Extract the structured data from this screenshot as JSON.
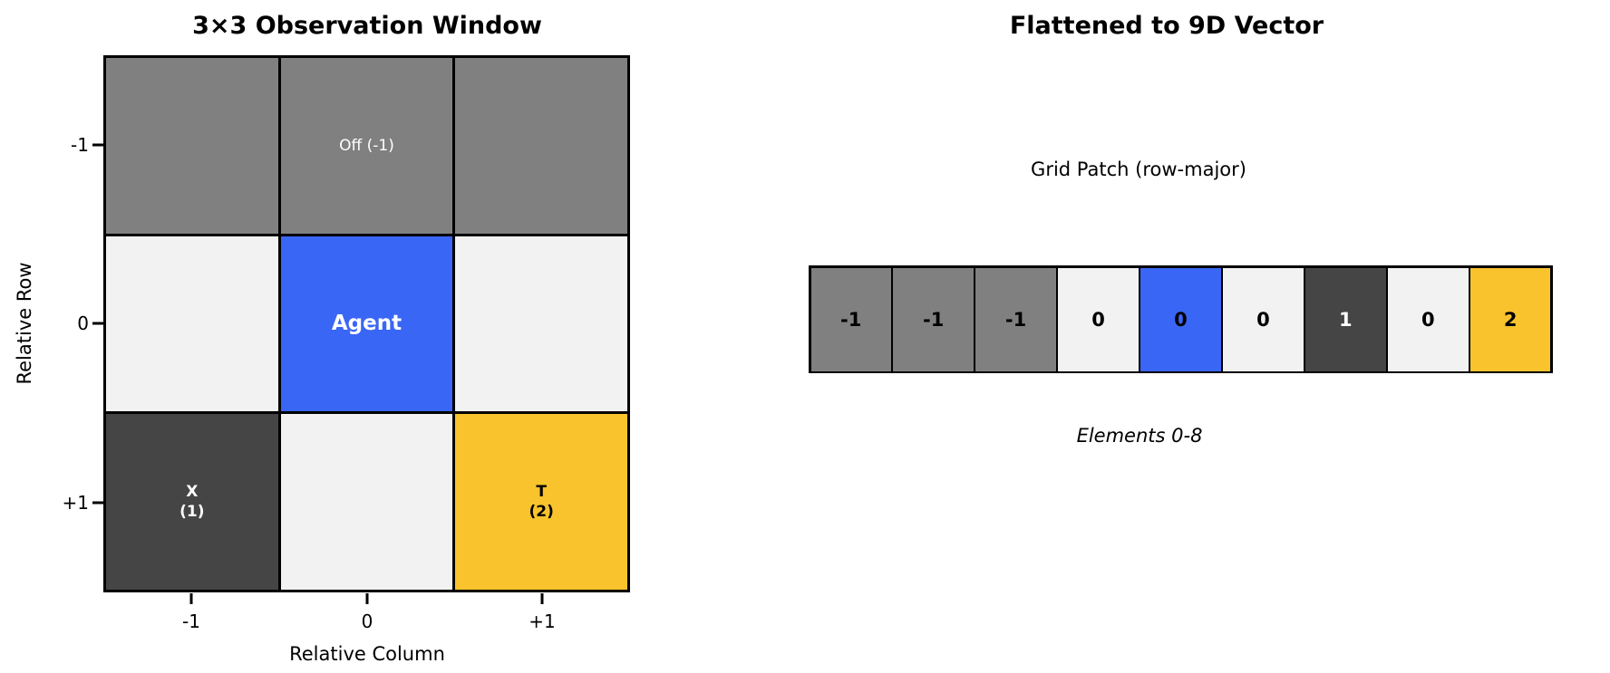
{
  "left_panel": {
    "title": "3×3 Observation Window",
    "xlabel": "Relative Column",
    "ylabel": "Relative Row",
    "x_ticks": [
      "-1",
      "0",
      "+1"
    ],
    "y_ticks": [
      "-1",
      "0",
      "+1"
    ],
    "cells": [
      {
        "label": "",
        "sublabel": "",
        "bg": "#808080",
        "fg": "#ffffff",
        "style": ""
      },
      {
        "label": "Off (-1)",
        "sublabel": "",
        "bg": "#808080",
        "fg": "#ffffff",
        "style": ""
      },
      {
        "label": "",
        "sublabel": "",
        "bg": "#808080",
        "fg": "#ffffff",
        "style": ""
      },
      {
        "label": "",
        "sublabel": "",
        "bg": "#F2F2F2",
        "fg": "#000000",
        "style": ""
      },
      {
        "label": "Agent",
        "sublabel": "",
        "bg": "#3A66F5",
        "fg": "#ffffff",
        "style": "agent"
      },
      {
        "label": "",
        "sublabel": "",
        "bg": "#F2F2F2",
        "fg": "#000000",
        "style": ""
      },
      {
        "label": "X",
        "sublabel": "(1)",
        "bg": "#454545",
        "fg": "#ffffff",
        "style": "bold"
      },
      {
        "label": "",
        "sublabel": "",
        "bg": "#F2F2F2",
        "fg": "#000000",
        "style": ""
      },
      {
        "label": "T",
        "sublabel": "(2)",
        "bg": "#F8C32C",
        "fg": "#000000",
        "style": "bold"
      }
    ]
  },
  "right_panel": {
    "title": "Flattened to 9D Vector",
    "subtitle": "Grid Patch (row-major)",
    "caption": "Elements 0-8",
    "vector": [
      {
        "value": "-1",
        "bg": "#808080",
        "fg": "#000000"
      },
      {
        "value": "-1",
        "bg": "#808080",
        "fg": "#000000"
      },
      {
        "value": "-1",
        "bg": "#808080",
        "fg": "#000000"
      },
      {
        "value": "0",
        "bg": "#F2F2F2",
        "fg": "#000000"
      },
      {
        "value": "0",
        "bg": "#3A66F5",
        "fg": "#000000"
      },
      {
        "value": "0",
        "bg": "#F2F2F2",
        "fg": "#000000"
      },
      {
        "value": "1",
        "bg": "#454545",
        "fg": "#ffffff"
      },
      {
        "value": "0",
        "bg": "#F2F2F2",
        "fg": "#000000"
      },
      {
        "value": "2",
        "bg": "#F8C32C",
        "fg": "#000000"
      }
    ]
  },
  "colors": {
    "off_gray": "#808080",
    "empty_light": "#F2F2F2",
    "agent_blue": "#3A66F5",
    "obstacle_dark": "#454545",
    "target_yellow": "#F8C32C",
    "line_black": "#000000",
    "background": "#ffffff"
  }
}
